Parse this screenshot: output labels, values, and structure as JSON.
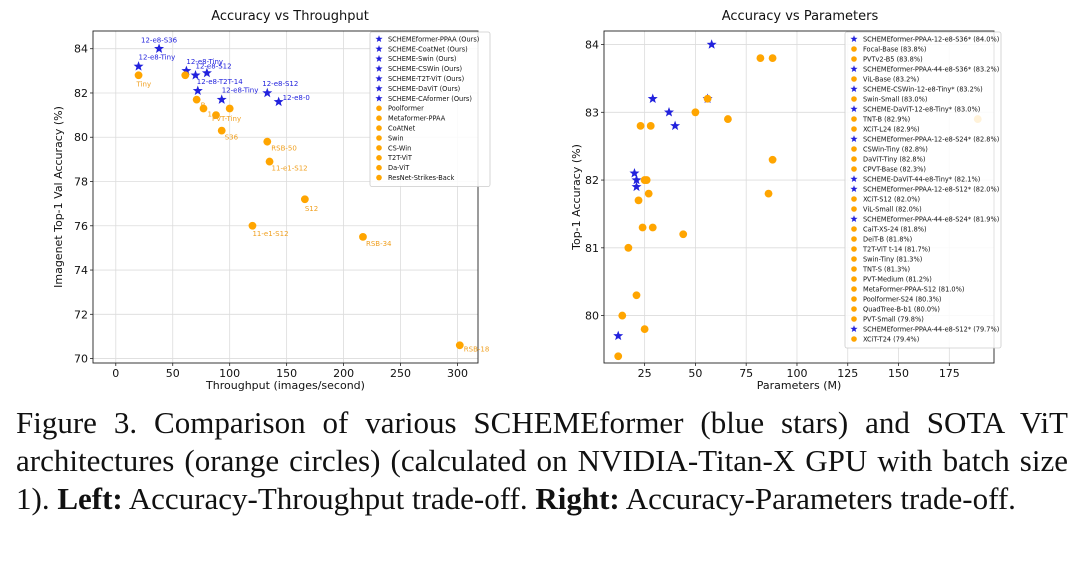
{
  "caption": {
    "lead": "Figure 3. Comparison of various SCHEMEformer (blue stars) and SOTA ViT architectures (orange circles) (calculated on NVIDIA-Titan-X GPU with batch size 1).",
    "left_label": "Left:",
    "left_text": "Accuracy-Throughput trade-off.",
    "right_label": "Right:",
    "right_text": "Accuracy-Parameters trade-off."
  },
  "colors": {
    "blue": "#2222dd",
    "orange": "#ffa500",
    "orange_text": "#f0a020"
  },
  "chart_data": [
    {
      "type": "scatter",
      "title": "Accuracy vs Throughput",
      "xlabel": "Throughput (images/second)",
      "ylabel": "Imagenet Top-1 Val Accuracy (%)",
      "xlim": [
        -20,
        318
      ],
      "ylim": [
        69.8,
        84.8
      ],
      "xticks": [
        0,
        50,
        100,
        150,
        200,
        250,
        300
      ],
      "yticks": [
        70,
        72,
        74,
        76,
        78,
        80,
        82,
        84
      ],
      "grid": true,
      "legend_position": "top-right",
      "legend": [
        {
          "name": "SCHEMEformer-PPAA (Ours)",
          "marker": "star",
          "color": "#2222dd"
        },
        {
          "name": "SCHEME-CoatNet (Ours)",
          "marker": "star",
          "color": "#2222dd"
        },
        {
          "name": "SCHEME-Swin (Ours)",
          "marker": "star",
          "color": "#2222dd"
        },
        {
          "name": "SCHEME-CSWin (Ours)",
          "marker": "star",
          "color": "#2222dd"
        },
        {
          "name": "SCHEME-T2T-ViT (Ours)",
          "marker": "star",
          "color": "#2222dd"
        },
        {
          "name": "SCHEME-DaViT (Ours)",
          "marker": "star",
          "color": "#2222dd"
        },
        {
          "name": "SCHEME-CAformer (Ours)",
          "marker": "star",
          "color": "#2222dd"
        },
        {
          "name": "Poolformer",
          "marker": "circle",
          "color": "#ffa500"
        },
        {
          "name": "Metaformer-PPAA",
          "marker": "circle",
          "color": "#ffa500"
        },
        {
          "name": "CoAtNet",
          "marker": "circle",
          "color": "#ffa500"
        },
        {
          "name": "Swin",
          "marker": "circle",
          "color": "#ffa500"
        },
        {
          "name": "CS-Win",
          "marker": "circle",
          "color": "#ffa500"
        },
        {
          "name": "T2T-ViT",
          "marker": "circle",
          "color": "#ffa500"
        },
        {
          "name": "Da-ViT",
          "marker": "circle",
          "color": "#ffa500"
        },
        {
          "name": "ResNet-Strikes-Back",
          "marker": "circle",
          "color": "#ffa500"
        }
      ],
      "points": [
        {
          "x": 38,
          "y": 84.0,
          "marker": "star",
          "color": "#2222dd",
          "label": "12-e8-S36"
        },
        {
          "x": 20,
          "y": 83.2,
          "marker": "star",
          "color": "#2222dd",
          "label": "12-e8-Tiny"
        },
        {
          "x": 62,
          "y": 83.0,
          "marker": "star",
          "color": "#2222dd",
          "label": "12-e8-Tiny"
        },
        {
          "x": 70,
          "y": 82.8,
          "marker": "star",
          "color": "#2222dd",
          "label": "12-e8-S12"
        },
        {
          "x": 80,
          "y": 82.9,
          "marker": "star",
          "color": "#2222dd",
          "label": ""
        },
        {
          "x": 72,
          "y": 82.1,
          "marker": "star",
          "color": "#2222dd",
          "label": "12-e8-T2T-14"
        },
        {
          "x": 93,
          "y": 81.7,
          "marker": "star",
          "color": "#2222dd",
          "label": "12-e8-Tiny"
        },
        {
          "x": 133,
          "y": 82.0,
          "marker": "star",
          "color": "#2222dd",
          "label": "12-e8-S12"
        },
        {
          "x": 143,
          "y": 81.6,
          "marker": "star",
          "color": "#2222dd",
          "label": "12-e8-0"
        },
        {
          "x": 20,
          "y": 82.8,
          "marker": "circle",
          "color": "#ffa500",
          "label": "Tiny"
        },
        {
          "x": 61,
          "y": 82.8,
          "marker": "circle",
          "color": "#ffa500",
          "label": ""
        },
        {
          "x": 71,
          "y": 81.7,
          "marker": "circle",
          "color": "#ffa500",
          "label": "B"
        },
        {
          "x": 77,
          "y": 81.3,
          "marker": "circle",
          "color": "#ffa500",
          "label": "14"
        },
        {
          "x": 88,
          "y": 81.0,
          "marker": "circle",
          "color": "#ffa500",
          "label": "PVT-Tiny"
        },
        {
          "x": 100,
          "y": 81.3,
          "marker": "circle",
          "color": "#ffa500",
          "label": ""
        },
        {
          "x": 93,
          "y": 80.3,
          "marker": "circle",
          "color": "#ffa500",
          "label": "S36"
        },
        {
          "x": 133,
          "y": 79.8,
          "marker": "circle",
          "color": "#ffa500",
          "label": "RSB-50"
        },
        {
          "x": 135,
          "y": 78.9,
          "marker": "circle",
          "color": "#ffa500",
          "label": "11-e1-S12"
        },
        {
          "x": 166,
          "y": 77.2,
          "marker": "circle",
          "color": "#ffa500",
          "label": "S12"
        },
        {
          "x": 120,
          "y": 76.0,
          "marker": "circle",
          "color": "#ffa500",
          "label": "11-e1-S12"
        },
        {
          "x": 217,
          "y": 75.5,
          "marker": "circle",
          "color": "#ffa500",
          "label": "RSB-34"
        },
        {
          "x": 302,
          "y": 70.6,
          "marker": "circle",
          "color": "#ffa500",
          "label": "RSB-18"
        }
      ]
    },
    {
      "type": "scatter",
      "title": "Accuracy vs Parameters",
      "xlabel": "Parameters (M)",
      "ylabel": "Top-1 Accuracy (%)",
      "xlim": [
        5,
        197
      ],
      "ylim": [
        79.3,
        84.2
      ],
      "xticks": [
        25,
        50,
        75,
        100,
        125,
        150,
        175
      ],
      "yticks": [
        80,
        81,
        82,
        83,
        84
      ],
      "grid": true,
      "legend_position": "top-right",
      "legend": [
        {
          "name": "SCHEMEformer-PPAA-12-e8-S36* (84.0%)",
          "marker": "star",
          "color": "#2222dd"
        },
        {
          "name": "Focal-Base (83.8%)",
          "marker": "circle",
          "color": "#ffa500"
        },
        {
          "name": "PVTv2-B5 (83.8%)",
          "marker": "circle",
          "color": "#ffa500"
        },
        {
          "name": "SCHEMEformer-PPAA-44-e8-S36* (83.2%)",
          "marker": "star",
          "color": "#2222dd"
        },
        {
          "name": "ViL-Base (83.2%)",
          "marker": "circle",
          "color": "#ffa500"
        },
        {
          "name": "SCHEME-CSWin-12-e8-Tiny* (83.2%)",
          "marker": "star",
          "color": "#2222dd"
        },
        {
          "name": "Swin-Small (83.0%)",
          "marker": "circle",
          "color": "#ffa500"
        },
        {
          "name": "SCHEME-DaViT-12-e8-Tiny* (83.0%)",
          "marker": "star",
          "color": "#2222dd"
        },
        {
          "name": "TNT-B (82.9%)",
          "marker": "circle",
          "color": "#ffa500"
        },
        {
          "name": "XCiT-L24 (82.9%)",
          "marker": "circle",
          "color": "#ffa500"
        },
        {
          "name": "SCHEMEformer-PPAA-12-e8-S24* (82.8%)",
          "marker": "star",
          "color": "#2222dd"
        },
        {
          "name": "CSWin-Tiny (82.8%)",
          "marker": "circle",
          "color": "#ffa500"
        },
        {
          "name": "DaViT-Tiny (82.8%)",
          "marker": "circle",
          "color": "#ffa500"
        },
        {
          "name": "CPVT-Base (82.3%)",
          "marker": "circle",
          "color": "#ffa500"
        },
        {
          "name": "SCHEME-DaViT-44-e8-Tiny* (82.1%)",
          "marker": "star",
          "color": "#2222dd"
        },
        {
          "name": "SCHEMEformer-PPAA-12-e8-S12* (82.0%)",
          "marker": "star",
          "color": "#2222dd"
        },
        {
          "name": "XCiT-S12 (82.0%)",
          "marker": "circle",
          "color": "#ffa500"
        },
        {
          "name": "ViL-Small (82.0%)",
          "marker": "circle",
          "color": "#ffa500"
        },
        {
          "name": "SCHEMEformer-PPAA-44-e8-S24* (81.9%)",
          "marker": "star",
          "color": "#2222dd"
        },
        {
          "name": "CaiT-XS-24 (81.8%)",
          "marker": "circle",
          "color": "#ffa500"
        },
        {
          "name": "DeiT-B (81.8%)",
          "marker": "circle",
          "color": "#ffa500"
        },
        {
          "name": "T2T-ViT t-14 (81.7%)",
          "marker": "circle",
          "color": "#ffa500"
        },
        {
          "name": "Swin-Tiny (81.3%)",
          "marker": "circle",
          "color": "#ffa500"
        },
        {
          "name": "TNT-S (81.3%)",
          "marker": "circle",
          "color": "#ffa500"
        },
        {
          "name": "PVT-Medium (81.2%)",
          "marker": "circle",
          "color": "#ffa500"
        },
        {
          "name": "MetaFormer-PPAA-S12 (81.0%)",
          "marker": "circle",
          "color": "#ffa500"
        },
        {
          "name": "Poolformer-S24 (80.3%)",
          "marker": "circle",
          "color": "#ffa500"
        },
        {
          "name": "QuadTree-B-b1 (80.0%)",
          "marker": "circle",
          "color": "#ffa500"
        },
        {
          "name": "PVT-Small (79.8%)",
          "marker": "circle",
          "color": "#ffa500"
        },
        {
          "name": "SCHEMEformer-PPAA-44-e8-S12* (79.7%)",
          "marker": "star",
          "color": "#2222dd"
        },
        {
          "name": "XCiT-T24 (79.4%)",
          "marker": "circle",
          "color": "#ffa500"
        }
      ],
      "points": [
        {
          "x": 58,
          "y": 84.0,
          "marker": "star",
          "color": "#2222dd"
        },
        {
          "x": 88,
          "y": 83.8,
          "marker": "circle",
          "color": "#ffa500"
        },
        {
          "x": 82,
          "y": 83.8,
          "marker": "circle",
          "color": "#ffa500"
        },
        {
          "x": 56,
          "y": 83.2,
          "marker": "star",
          "color": "#2222dd"
        },
        {
          "x": 56,
          "y": 83.2,
          "marker": "circle",
          "color": "#ffa500"
        },
        {
          "x": 29,
          "y": 83.2,
          "marker": "star",
          "color": "#2222dd"
        },
        {
          "x": 50,
          "y": 83.0,
          "marker": "circle",
          "color": "#ffa500"
        },
        {
          "x": 37,
          "y": 83.0,
          "marker": "star",
          "color": "#2222dd"
        },
        {
          "x": 66,
          "y": 82.9,
          "marker": "circle",
          "color": "#ffa500"
        },
        {
          "x": 189,
          "y": 82.9,
          "marker": "circle",
          "color": "#ffa500"
        },
        {
          "x": 40,
          "y": 82.8,
          "marker": "star",
          "color": "#2222dd"
        },
        {
          "x": 23,
          "y": 82.8,
          "marker": "circle",
          "color": "#ffa500"
        },
        {
          "x": 28,
          "y": 82.8,
          "marker": "circle",
          "color": "#ffa500"
        },
        {
          "x": 88,
          "y": 82.3,
          "marker": "circle",
          "color": "#ffa500"
        },
        {
          "x": 20,
          "y": 82.1,
          "marker": "star",
          "color": "#2222dd"
        },
        {
          "x": 21,
          "y": 82.0,
          "marker": "star",
          "color": "#2222dd"
        },
        {
          "x": 26,
          "y": 82.0,
          "marker": "circle",
          "color": "#ffa500"
        },
        {
          "x": 25,
          "y": 82.0,
          "marker": "circle",
          "color": "#ffa500"
        },
        {
          "x": 21,
          "y": 81.9,
          "marker": "star",
          "color": "#2222dd"
        },
        {
          "x": 27,
          "y": 81.8,
          "marker": "circle",
          "color": "#ffa500"
        },
        {
          "x": 86,
          "y": 81.8,
          "marker": "circle",
          "color": "#ffa500"
        },
        {
          "x": 22,
          "y": 81.7,
          "marker": "circle",
          "color": "#ffa500"
        },
        {
          "x": 29,
          "y": 81.3,
          "marker": "circle",
          "color": "#ffa500"
        },
        {
          "x": 24,
          "y": 81.3,
          "marker": "circle",
          "color": "#ffa500"
        },
        {
          "x": 44,
          "y": 81.2,
          "marker": "circle",
          "color": "#ffa500"
        },
        {
          "x": 17,
          "y": 81.0,
          "marker": "circle",
          "color": "#ffa500"
        },
        {
          "x": 21,
          "y": 80.3,
          "marker": "circle",
          "color": "#ffa500"
        },
        {
          "x": 25,
          "y": 79.8,
          "marker": "circle",
          "color": "#ffa500"
        },
        {
          "x": 14,
          "y": 80.0,
          "marker": "circle",
          "color": "#ffa500"
        },
        {
          "x": 12,
          "y": 79.7,
          "marker": "star",
          "color": "#2222dd"
        },
        {
          "x": 12,
          "y": 79.4,
          "marker": "circle",
          "color": "#ffa500"
        }
      ]
    }
  ]
}
